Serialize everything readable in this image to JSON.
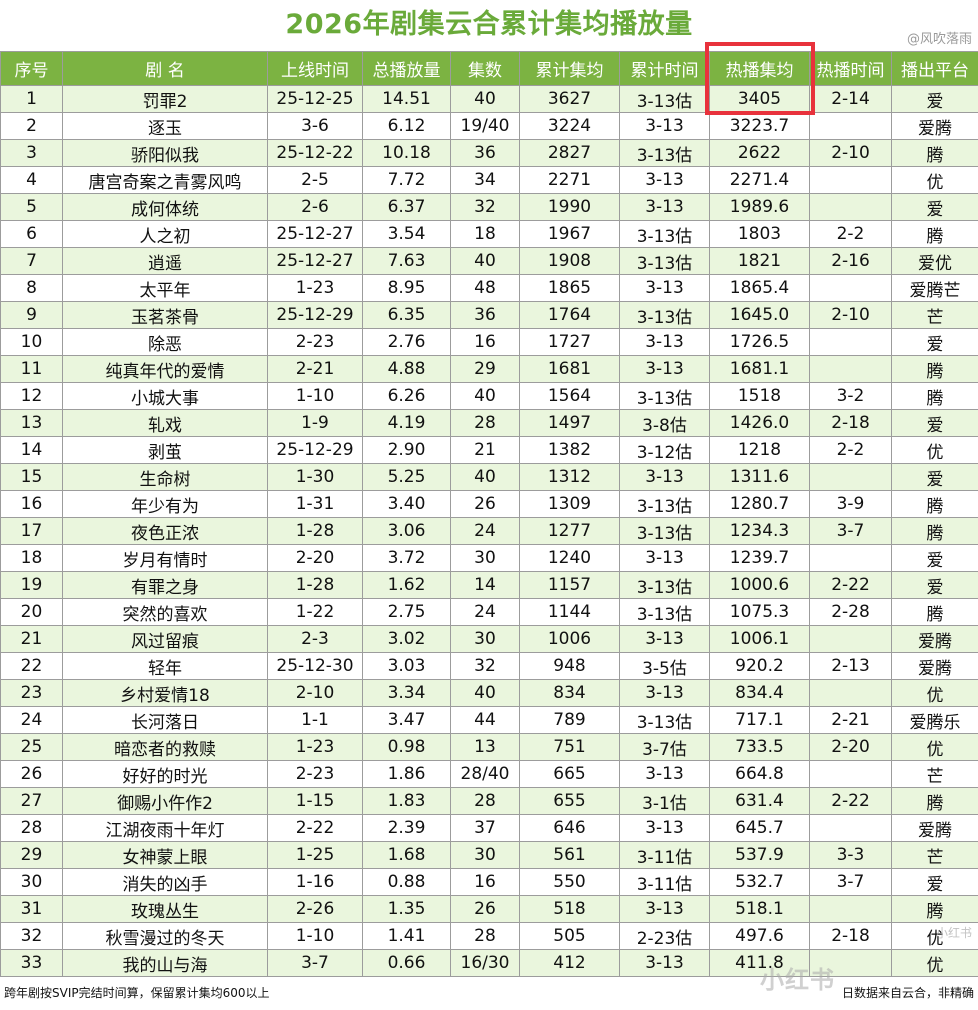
{
  "title": "2026年剧集云合累计集均播放量",
  "watermark_top": "@风吹落雨",
  "headers": [
    "序号",
    "剧  名",
    "上线时间",
    "总播放量",
    "集数",
    "累计集均",
    "累计时间",
    "热播集均",
    "热播时间",
    "播出平台"
  ],
  "rows": [
    [
      "1",
      "罚罪2",
      "25-12-25",
      "14.51",
      "40",
      "3627",
      "3-13估",
      "3405",
      "2-14",
      "爱"
    ],
    [
      "2",
      "逐玉",
      "3-6",
      "6.12",
      "19/40",
      "3224",
      "3-13",
      "3223.7",
      "",
      "爱腾"
    ],
    [
      "3",
      "骄阳似我",
      "25-12-22",
      "10.18",
      "36",
      "2827",
      "3-13估",
      "2622",
      "2-10",
      "腾"
    ],
    [
      "4",
      "唐宫奇案之青雾风鸣",
      "2-5",
      "7.72",
      "34",
      "2271",
      "3-13",
      "2271.4",
      "",
      "优"
    ],
    [
      "5",
      "成何体统",
      "2-6",
      "6.37",
      "32",
      "1990",
      "3-13",
      "1989.6",
      "",
      "爱"
    ],
    [
      "6",
      "人之初",
      "25-12-27",
      "3.54",
      "18",
      "1967",
      "3-13估",
      "1803",
      "2-2",
      "腾"
    ],
    [
      "7",
      "逍遥",
      "25-12-27",
      "7.63",
      "40",
      "1908",
      "3-13估",
      "1821",
      "2-16",
      "爱优"
    ],
    [
      "8",
      "太平年",
      "1-23",
      "8.95",
      "48",
      "1865",
      "3-13",
      "1865.4",
      "",
      "爱腾芒"
    ],
    [
      "9",
      "玉茗茶骨",
      "25-12-29",
      "6.35",
      "36",
      "1764",
      "3-13估",
      "1645.0",
      "2-10",
      "芒"
    ],
    [
      "10",
      "除恶",
      "2-23",
      "2.76",
      "16",
      "1727",
      "3-13",
      "1726.5",
      "",
      "爱"
    ],
    [
      "11",
      "纯真年代的爱情",
      "2-21",
      "4.88",
      "29",
      "1681",
      "3-13",
      "1681.1",
      "",
      "腾"
    ],
    [
      "12",
      "小城大事",
      "1-10",
      "6.26",
      "40",
      "1564",
      "3-13估",
      "1518",
      "3-2",
      "腾"
    ],
    [
      "13",
      "轧戏",
      "1-9",
      "4.19",
      "28",
      "1497",
      "3-8估",
      "1426.0",
      "2-18",
      "爱"
    ],
    [
      "14",
      "剥茧",
      "25-12-29",
      "2.90",
      "21",
      "1382",
      "3-12估",
      "1218",
      "2-2",
      "优"
    ],
    [
      "15",
      "生命树",
      "1-30",
      "5.25",
      "40",
      "1312",
      "3-13",
      "1311.6",
      "",
      "爱"
    ],
    [
      "16",
      "年少有为",
      "1-31",
      "3.40",
      "26",
      "1309",
      "3-13估",
      "1280.7",
      "3-9",
      "腾"
    ],
    [
      "17",
      "夜色正浓",
      "1-28",
      "3.06",
      "24",
      "1277",
      "3-13估",
      "1234.3",
      "3-7",
      "腾"
    ],
    [
      "18",
      "岁月有情时",
      "2-20",
      "3.72",
      "30",
      "1240",
      "3-13",
      "1239.7",
      "",
      "爱"
    ],
    [
      "19",
      "有罪之身",
      "1-28",
      "1.62",
      "14",
      "1157",
      "3-13估",
      "1000.6",
      "2-22",
      "爱"
    ],
    [
      "20",
      "突然的喜欢",
      "1-22",
      "2.75",
      "24",
      "1144",
      "3-13估",
      "1075.3",
      "2-28",
      "腾"
    ],
    [
      "21",
      "风过留痕",
      "2-3",
      "3.02",
      "30",
      "1006",
      "3-13",
      "1006.1",
      "",
      "爱腾"
    ],
    [
      "22",
      "轻年",
      "25-12-30",
      "3.03",
      "32",
      "948",
      "3-5估",
      "920.2",
      "2-13",
      "爱腾"
    ],
    [
      "23",
      "乡村爱情18",
      "2-10",
      "3.34",
      "40",
      "834",
      "3-13",
      "834.4",
      "",
      "优"
    ],
    [
      "24",
      "长河落日",
      "1-1",
      "3.47",
      "44",
      "789",
      "3-13估",
      "717.1",
      "2-21",
      "爱腾乐"
    ],
    [
      "25",
      "暗恋者的救赎",
      "1-23",
      "0.98",
      "13",
      "751",
      "3-7估",
      "733.5",
      "2-20",
      "优"
    ],
    [
      "26",
      "好好的时光",
      "2-23",
      "1.86",
      "28/40",
      "665",
      "3-13",
      "664.8",
      "",
      "芒"
    ],
    [
      "27",
      "御赐小仵作2",
      "1-15",
      "1.83",
      "28",
      "655",
      "3-1估",
      "631.4",
      "2-22",
      "腾"
    ],
    [
      "28",
      "江湖夜雨十年灯",
      "2-22",
      "2.39",
      "37",
      "646",
      "3-13",
      "645.7",
      "",
      "爱腾"
    ],
    [
      "29",
      "女神蒙上眼",
      "1-25",
      "1.68",
      "30",
      "561",
      "3-11估",
      "537.9",
      "3-3",
      "芒"
    ],
    [
      "30",
      "消失的凶手",
      "1-16",
      "0.88",
      "16",
      "550",
      "3-11估",
      "532.7",
      "3-7",
      "爱"
    ],
    [
      "31",
      "玫瑰丛生",
      "2-26",
      "1.35",
      "26",
      "518",
      "3-13",
      "518.1",
      "",
      "腾"
    ],
    [
      "32",
      "秋雪漫过的冬天",
      "1-10",
      "1.41",
      "28",
      "505",
      "2-23估",
      "497.6",
      "2-18",
      "优"
    ],
    [
      "33",
      "我的山与海",
      "3-7",
      "0.66",
      "16/30",
      "412",
      "3-13",
      "411.8",
      "",
      "优"
    ]
  ],
  "footer_left": "跨年剧按SVIP完结时间算，保留累计集均600以上",
  "footer_right": "日数据来自云合，非精确",
  "watermark_bottom": "小红书",
  "watermark_side": "小红书",
  "colors": {
    "title": "#6aaa3a",
    "header_bg": "#7cb342",
    "row_alt": "#eaf6dd",
    "highlight_box": "#e8323c"
  }
}
